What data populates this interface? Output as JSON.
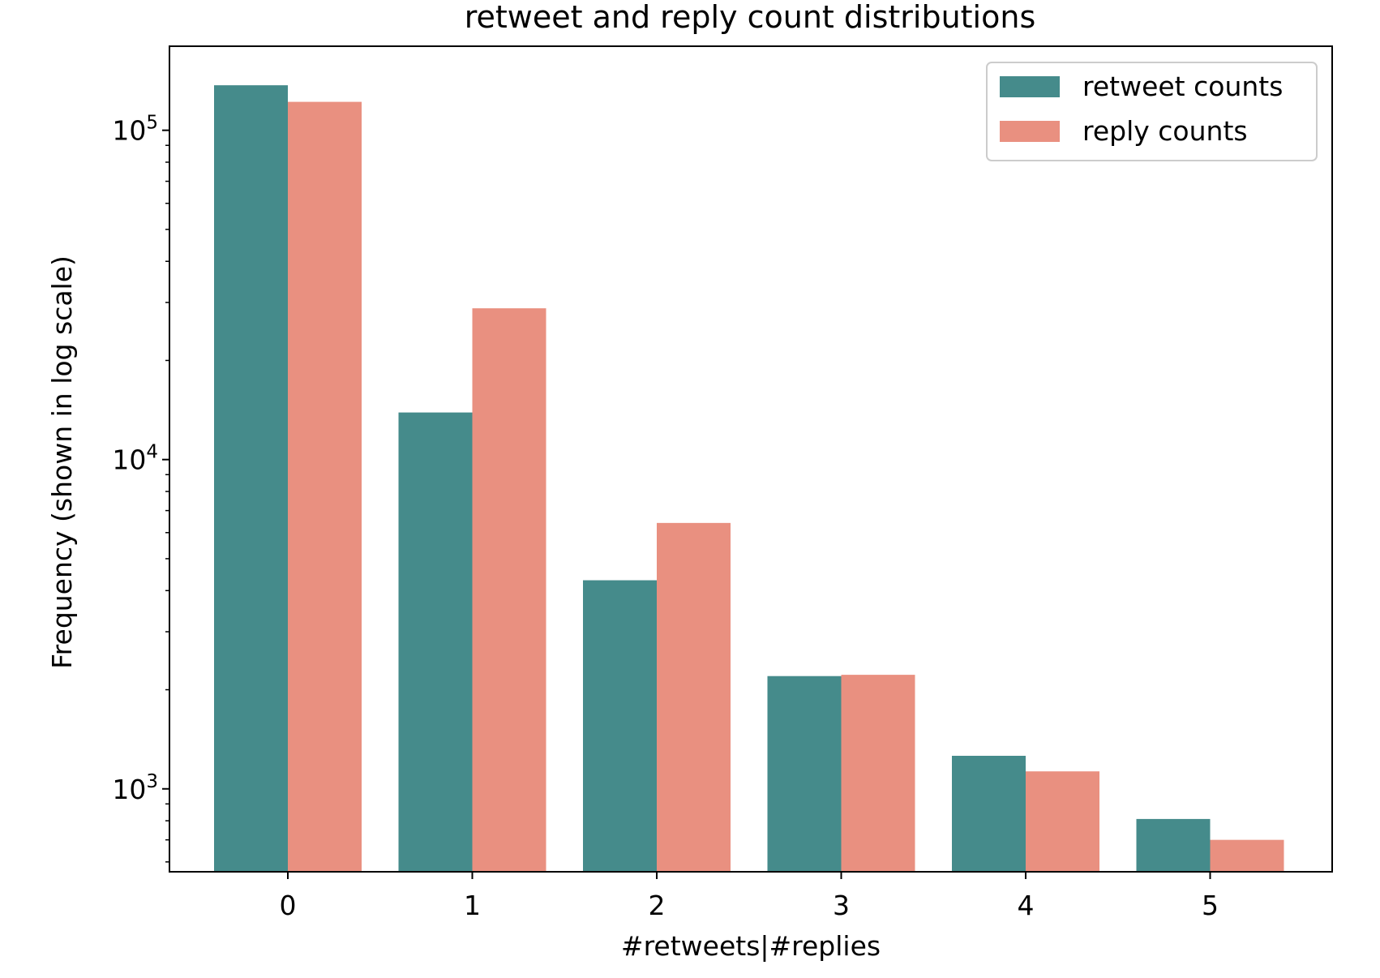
{
  "chart_data": {
    "type": "bar",
    "title": "retweet and reply count distributions",
    "xlabel": "#retweets|#replies",
    "ylabel": "Frequency (shown in log scale)",
    "yscale": "log",
    "ylim": [
      560,
      180000
    ],
    "categories": [
      "0",
      "1",
      "2",
      "3",
      "4",
      "5"
    ],
    "series": [
      {
        "name": "retweet counts",
        "color": "#458b8b",
        "values": [
          137000,
          13900,
          4300,
          2200,
          1260,
          810
        ]
      },
      {
        "name": "reply counts",
        "color": "#e99080",
        "values": [
          122000,
          28800,
          6420,
          2220,
          1130,
          700
        ]
      }
    ],
    "y_ticks": [
      {
        "base": "10",
        "exp": "3",
        "value": 1000
      },
      {
        "base": "10",
        "exp": "4",
        "value": 10000
      },
      {
        "base": "10",
        "exp": "5",
        "value": 100000
      }
    ],
    "legend": {
      "placement": "top-right"
    },
    "grid": false
  }
}
